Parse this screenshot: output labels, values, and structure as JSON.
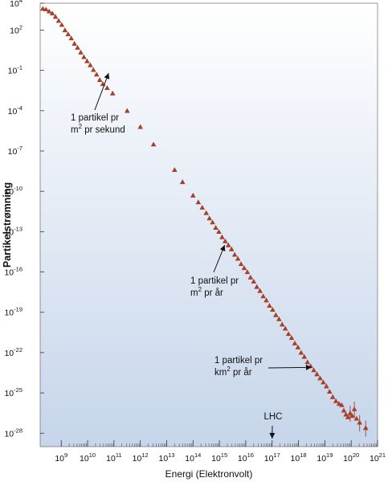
{
  "chart_data": {
    "type": "scatter",
    "xlabel": "Energi (Elektronvolt)",
    "ylabel": "Partikelstrømning",
    "x_scale": "log",
    "y_scale": "log",
    "x_range_exp": [
      8.2,
      21
    ],
    "y_range_exp": [
      -29,
      4
    ],
    "x_tick_exps": [
      9,
      10,
      11,
      12,
      13,
      14,
      15,
      16,
      17,
      18,
      19,
      20,
      21
    ],
    "y_tick_exps": [
      4,
      2,
      -1,
      -4,
      -7,
      -10,
      -13,
      -16,
      -19,
      -22,
      -25,
      -28
    ],
    "colors": {
      "marker": "#a5402a",
      "bg_top": "#ffffff",
      "bg_bottom": "#c6d5ea"
    },
    "annotations": [
      {
        "lines": [
          "1 partikel pr",
          "m² pr sekund"
        ],
        "arrow_to": [
          10.8,
          -1.2
        ]
      },
      {
        "lines": [
          "1 partikel pr",
          "m² pr år"
        ],
        "arrow_to": [
          15.2,
          -14.0
        ]
      },
      {
        "lines": [
          "1 partikel pr",
          "km² pr år"
        ],
        "arrow_to": [
          18.5,
          -23.1
        ]
      },
      {
        "lines": [
          "LHC"
        ],
        "arrow_to": [
          17.0,
          -28.4
        ]
      }
    ],
    "series": [
      {
        "points": [
          [
            8.3,
            3.6
          ],
          [
            8.42,
            3.55
          ],
          [
            8.54,
            3.4
          ],
          [
            8.66,
            3.25
          ],
          [
            8.78,
            3.0
          ],
          [
            8.9,
            2.7
          ],
          [
            9.02,
            2.4
          ],
          [
            9.14,
            2.0
          ],
          [
            9.26,
            1.7
          ],
          [
            9.38,
            1.4
          ],
          [
            9.5,
            1.0
          ],
          [
            9.62,
            0.7
          ],
          [
            9.74,
            0.35
          ],
          [
            9.86,
            0.0
          ],
          [
            9.98,
            -0.3
          ],
          [
            10.1,
            -0.6
          ],
          [
            10.22,
            -0.95
          ],
          [
            10.34,
            -1.3
          ],
          [
            10.46,
            -1.7
          ],
          [
            10.58,
            -2.0
          ],
          [
            10.74,
            -2.3
          ],
          [
            10.95,
            -2.7
          ],
          [
            11.5,
            -4.0
          ],
          [
            12.0,
            -5.2
          ],
          [
            12.5,
            -6.5
          ],
          [
            13.3,
            -8.4
          ],
          [
            13.6,
            -9.3
          ],
          [
            14.0,
            -10.3
          ],
          [
            14.2,
            -10.8
          ],
          [
            14.35,
            -11.2
          ],
          [
            14.5,
            -11.6
          ],
          [
            14.62,
            -12.0
          ],
          [
            14.74,
            -12.3
          ],
          [
            14.86,
            -12.7
          ],
          [
            14.98,
            -13.0
          ],
          [
            15.1,
            -13.4
          ],
          [
            15.22,
            -13.7
          ],
          [
            15.34,
            -14.0
          ],
          [
            15.46,
            -14.3
          ],
          [
            15.58,
            -14.7
          ],
          [
            15.7,
            -15.0
          ],
          [
            15.82,
            -15.4
          ],
          [
            15.94,
            -15.7
          ],
          [
            16.06,
            -16.0
          ],
          [
            16.18,
            -16.4
          ],
          [
            16.3,
            -16.7
          ],
          [
            16.42,
            -17.1
          ],
          [
            16.54,
            -17.4
          ],
          [
            16.66,
            -17.8
          ],
          [
            16.78,
            -18.1
          ],
          [
            16.9,
            -18.5
          ],
          [
            17.02,
            -18.8
          ],
          [
            17.14,
            -19.2
          ],
          [
            17.26,
            -19.5
          ],
          [
            17.38,
            -19.9
          ],
          [
            17.5,
            -20.2
          ],
          [
            17.62,
            -20.6
          ],
          [
            17.74,
            -20.9
          ],
          [
            17.86,
            -21.3
          ],
          [
            17.98,
            -21.6
          ],
          [
            18.1,
            -22.0
          ],
          [
            18.22,
            -22.3
          ],
          [
            18.34,
            -22.7
          ],
          [
            18.46,
            -23.0
          ],
          [
            18.58,
            -23.3
          ],
          [
            18.7,
            -23.6
          ],
          [
            18.82,
            -23.9
          ],
          [
            18.94,
            -24.2
          ],
          [
            19.06,
            -24.5
          ],
          [
            19.18,
            -24.9
          ],
          [
            19.3,
            -25.3
          ],
          [
            19.42,
            -25.6
          ],
          [
            19.54,
            -25.8
          ],
          [
            19.64,
            -25.9
          ],
          [
            19.72,
            -26.3
          ],
          [
            19.8,
            -26.6
          ],
          [
            19.88,
            -26.8
          ],
          [
            19.96,
            -26.5
          ],
          [
            20.04,
            -26.7
          ],
          [
            20.12,
            -26.2
          ],
          [
            20.2,
            -26.9
          ],
          [
            20.32,
            -27.2
          ],
          [
            20.55,
            -27.6
          ]
        ]
      }
    ]
  }
}
